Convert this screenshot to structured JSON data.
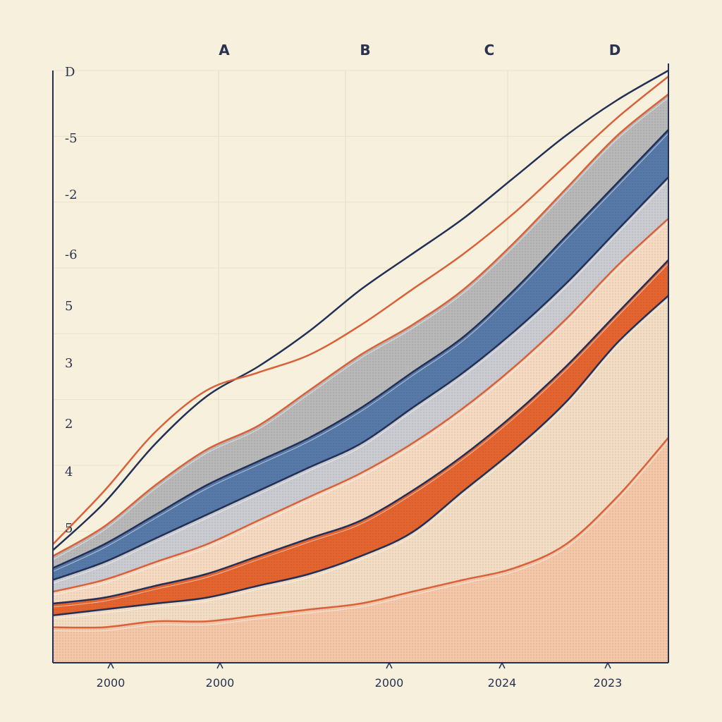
{
  "chart_data": {
    "type": "area",
    "column_labels": [
      "A",
      "B",
      "C",
      "D"
    ],
    "y_tick_labels": [
      "D",
      "-5",
      "-2",
      "-6",
      "5",
      "3",
      "2",
      "4",
      "5"
    ],
    "x_tick_labels": [
      "2000",
      "2000",
      "2000",
      "2024",
      "2023"
    ],
    "x": [
      0,
      1,
      2,
      3,
      4,
      5,
      6,
      7,
      8,
      9,
      10,
      11,
      12
    ],
    "ylim": [
      0,
      10
    ],
    "grid": true,
    "legend": "none",
    "series": [
      {
        "values": [
          0.6,
          0.6,
          0.7,
          0.7,
          0.8,
          0.9,
          1.0,
          1.2,
          1.4,
          1.6,
          2.0,
          2.8,
          3.8
        ],
        "color": "#f3c7a8",
        "line": "#d9613a"
      },
      {
        "values": [
          0.8,
          0.9,
          1.0,
          1.1,
          1.3,
          1.5,
          1.8,
          2.2,
          2.9,
          3.6,
          4.4,
          5.4,
          6.2
        ],
        "color": "#f2dcc4",
        "line": "#233056"
      },
      {
        "values": [
          1.0,
          1.1,
          1.3,
          1.5,
          1.8,
          2.1,
          2.4,
          2.9,
          3.5,
          4.2,
          5.0,
          5.9,
          6.8
        ],
        "color": "#e4642f",
        "line": "#233056"
      },
      {
        "values": [
          1.2,
          1.4,
          1.7,
          2.0,
          2.4,
          2.8,
          3.2,
          3.7,
          4.3,
          5.0,
          5.8,
          6.7,
          7.5
        ],
        "color": "#f5d9c1",
        "line": "#d9613a"
      },
      {
        "values": [
          1.4,
          1.7,
          2.1,
          2.5,
          2.9,
          3.3,
          3.7,
          4.3,
          4.9,
          5.6,
          6.4,
          7.3,
          8.2
        ],
        "color": "#c9cbd1",
        "line": "#233056"
      },
      {
        "values": [
          1.6,
          2.0,
          2.5,
          3.0,
          3.4,
          3.8,
          4.3,
          4.9,
          5.5,
          6.3,
          7.2,
          8.1,
          9.0
        ],
        "color": "#5679a8",
        "line": "#233056"
      },
      {
        "values": [
          1.8,
          2.3,
          3.0,
          3.6,
          4.0,
          4.6,
          5.2,
          5.7,
          6.3,
          7.1,
          8.0,
          8.9,
          9.6
        ],
        "color": "#b8b8b8",
        "line": "#d9613a"
      }
    ],
    "outline_lines": [
      {
        "values": [
          1.9,
          2.7,
          3.7,
          4.5,
          5.0,
          5.6,
          6.3,
          6.9,
          7.5,
          8.2,
          8.9,
          9.5,
          10.0
        ],
        "color": "#233056"
      },
      {
        "values": [
          2.0,
          2.9,
          3.9,
          4.6,
          4.9,
          5.2,
          5.7,
          6.3,
          6.9,
          7.6,
          8.4,
          9.2,
          9.9
        ],
        "color": "#d9613a"
      }
    ]
  }
}
